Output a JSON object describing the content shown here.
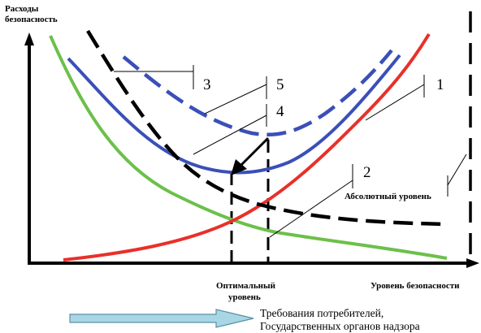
{
  "labels": {
    "y_axis_line1": "Расходы",
    "y_axis_line2": "безопасность",
    "x_axis": "Уровень безопасности",
    "optimal_line1": "Оптимальный",
    "optimal_line2": "уровень",
    "absolute": "Абсолютный уровень",
    "requirements_line1": "Требования потребителей,",
    "requirements_line2": "Государственных органов надзора"
  },
  "callouts": {
    "c1": "1",
    "c2": "2",
    "c3": "3",
    "c4": "4",
    "c5": "5"
  },
  "colors": {
    "red_curve": "#e8302a",
    "green_curve": "#6cc04a",
    "blue_curve": "#3a4fb8",
    "black_dashed": "#000000",
    "arrow_fill": "#a9d6e4",
    "axis": "#000000"
  },
  "icons": {
    "requirements_arrow": "right-arrow-icon"
  }
}
